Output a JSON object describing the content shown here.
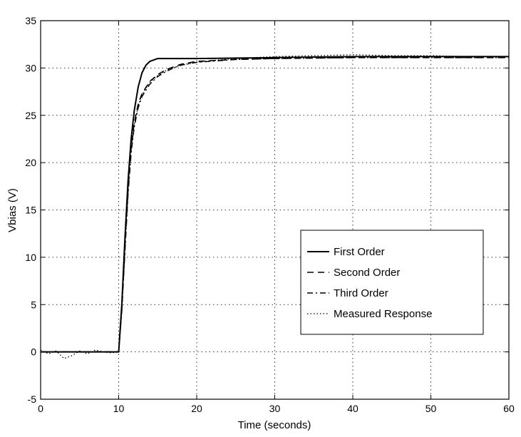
{
  "chart_data": {
    "type": "line",
    "title": "",
    "xlabel": "Time (seconds)",
    "ylabel": "Vbias (V)",
    "xlim": [
      0,
      60
    ],
    "ylim": [
      -5,
      35
    ],
    "xticks": [
      0,
      10,
      20,
      30,
      40,
      50,
      60
    ],
    "yticks": [
      -5,
      0,
      5,
      10,
      15,
      20,
      25,
      30,
      35
    ],
    "grid": true,
    "legend": "center-right",
    "series": [
      {
        "name": "First Order",
        "style": "solid",
        "x": [
          0,
          10,
          10.4,
          10.8,
          11.2,
          11.6,
          12,
          12.5,
          13,
          13.5,
          14,
          15,
          17,
          20,
          30,
          40,
          50,
          60
        ],
        "y": [
          0,
          0,
          5,
          12,
          18,
          22.5,
          25.5,
          28,
          29.5,
          30.3,
          30.7,
          31,
          31,
          31,
          31.1,
          31.2,
          31.2,
          31.2
        ]
      },
      {
        "name": "Second Order",
        "style": "dashed",
        "x": [
          0,
          10,
          10.4,
          10.8,
          11.2,
          11.6,
          12,
          12.5,
          13,
          14,
          15,
          16,
          17,
          18,
          20,
          25,
          30,
          40,
          50,
          60
        ],
        "y": [
          0,
          0,
          4.5,
          11,
          17,
          21.5,
          24.2,
          26.2,
          27.3,
          28.6,
          29.3,
          29.8,
          30.1,
          30.4,
          30.7,
          30.9,
          31,
          31.1,
          31.1,
          31.1
        ]
      },
      {
        "name": "Third Order",
        "style": "dashdot",
        "x": [
          0,
          10,
          10.4,
          10.8,
          11.2,
          11.6,
          12,
          12.5,
          13,
          14,
          15,
          16,
          17,
          18,
          20,
          25,
          30,
          40,
          50,
          60
        ],
        "y": [
          0,
          0,
          4.3,
          10.6,
          16.6,
          21,
          23.8,
          25.8,
          27,
          28.3,
          29.1,
          29.6,
          30,
          30.3,
          30.6,
          30.9,
          31,
          31.1,
          31.1,
          31.1
        ]
      },
      {
        "name": "Measured Response",
        "style": "dotted",
        "x": [
          0,
          1,
          2,
          3,
          4,
          5,
          6,
          7,
          8,
          9,
          10,
          10.4,
          10.8,
          11.2,
          11.6,
          12,
          12.5,
          13,
          14,
          15,
          16,
          17,
          18,
          20,
          22,
          25,
          30,
          35,
          40,
          45,
          50,
          55,
          60
        ],
        "y": [
          0.2,
          -0.2,
          0.1,
          -0.7,
          -0.4,
          0.1,
          -0.2,
          0.2,
          0,
          -0.1,
          0,
          4.5,
          11,
          17,
          21.5,
          24,
          26,
          27.2,
          28.5,
          29.2,
          29.7,
          30,
          30.3,
          30.6,
          30.8,
          31,
          31.2,
          31.3,
          31.4,
          31.3,
          31.3,
          31.2,
          31.2
        ]
      }
    ]
  }
}
